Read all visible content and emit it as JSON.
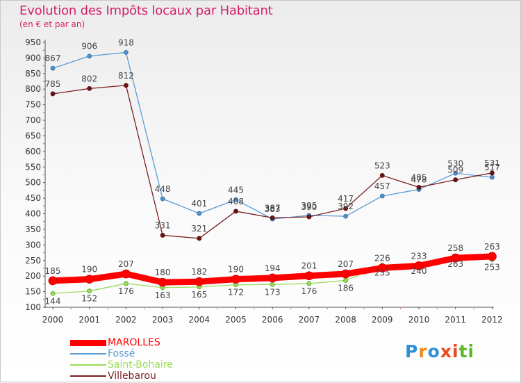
{
  "chart_data": {
    "type": "line",
    "title": "Evolution des Impôts locaux par Habitant",
    "subtitle": "(en € et par an)",
    "x": [
      "2000",
      "2001",
      "2002",
      "2003",
      "2004",
      "2005",
      "2006",
      "2007",
      "2008",
      "2009",
      "2010",
      "2011",
      "2012"
    ],
    "ylim": [
      100,
      950
    ],
    "yticks": [
      100,
      150,
      200,
      250,
      300,
      350,
      400,
      450,
      500,
      550,
      600,
      650,
      700,
      750,
      800,
      850,
      900,
      950
    ],
    "grid": false,
    "legend_position": "bottom-left",
    "series": [
      {
        "name": "MAROLLES",
        "color": "#ff0000",
        "values": [
          185,
          190,
          207,
          180,
          182,
          190,
          194,
          201,
          207,
          226,
          233,
          258,
          263
        ]
      },
      {
        "name": "Fossé",
        "color": "#5a9bd5",
        "values": [
          867,
          906,
          918,
          448,
          401,
          445,
          383,
          395,
          392,
          457,
          478,
          530,
          517
        ]
      },
      {
        "name": "Saint-Bohaire",
        "color": "#9bdc5a",
        "values": [
          144,
          152,
          176,
          163,
          165,
          172,
          173,
          176,
          186,
          235,
          240,
          263,
          253
        ]
      },
      {
        "name": "Villebarou",
        "color": "#7a1f1f",
        "values": [
          785,
          802,
          812,
          331,
          321,
          408,
          387,
          390,
          417,
          523,
          485,
          509,
          531
        ]
      }
    ]
  },
  "logo": {
    "text": "Proxiti",
    "chars": [
      "P",
      "r",
      "o",
      "x",
      "i",
      "t",
      "i"
    ]
  }
}
